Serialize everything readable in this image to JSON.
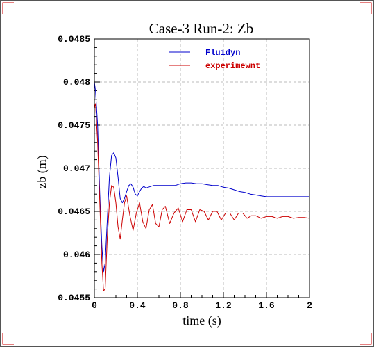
{
  "chart_data": {
    "type": "line",
    "title": "Case-3 Run-2: Zb",
    "xlabel": "time (s)",
    "ylabel": "zb (m)",
    "xlim": [
      0,
      2
    ],
    "ylim": [
      0.0455,
      0.0485
    ],
    "x_ticks": [
      0,
      0.4,
      0.8,
      1.2,
      1.6,
      2
    ],
    "x_tick_labels": [
      "0",
      "0.4",
      "0.8",
      "1.2",
      "1.6",
      "2"
    ],
    "y_ticks": [
      0.0455,
      0.046,
      0.0465,
      0.047,
      0.0475,
      0.048,
      0.0485
    ],
    "y_tick_labels": [
      "0.0455",
      "0.046",
      "0.0465",
      "0.047",
      "0.0475",
      "0.048",
      "0.0485"
    ],
    "grid": true,
    "legend_position": "top-right",
    "series": [
      {
        "name": "Fluidyn",
        "color": "#0000cc",
        "x": [
          0,
          0.01,
          0.03,
          0.05,
          0.07,
          0.085,
          0.1,
          0.12,
          0.14,
          0.16,
          0.18,
          0.2,
          0.22,
          0.24,
          0.26,
          0.28,
          0.3,
          0.32,
          0.34,
          0.36,
          0.38,
          0.4,
          0.42,
          0.44,
          0.46,
          0.48,
          0.5,
          0.55,
          0.6,
          0.65,
          0.7,
          0.75,
          0.8,
          0.85,
          0.9,
          0.95,
          1.0,
          1.05,
          1.1,
          1.15,
          1.2,
          1.25,
          1.3,
          1.35,
          1.4,
          1.45,
          1.5,
          1.55,
          1.6,
          1.7,
          1.8,
          1.9,
          2.0
        ],
        "y": [
          0.048,
          0.0479,
          0.0475,
          0.0467,
          0.0461,
          0.0458,
          0.0459,
          0.0464,
          0.0469,
          0.04715,
          0.04718,
          0.04712,
          0.0469,
          0.04665,
          0.0466,
          0.04665,
          0.04673,
          0.0468,
          0.04682,
          0.04678,
          0.0467,
          0.04668,
          0.04673,
          0.04677,
          0.04679,
          0.04677,
          0.04678,
          0.0468,
          0.0468,
          0.0468,
          0.0468,
          0.0468,
          0.04682,
          0.04683,
          0.04683,
          0.04682,
          0.04682,
          0.04681,
          0.0468,
          0.0468,
          0.04678,
          0.04677,
          0.04675,
          0.04673,
          0.04672,
          0.0467,
          0.04669,
          0.04668,
          0.04667,
          0.04667,
          0.04667,
          0.04667,
          0.04667
        ]
      },
      {
        "name": "experimewnt",
        "color": "#cc0000",
        "x": [
          0,
          0.01,
          0.03,
          0.05,
          0.07,
          0.085,
          0.1,
          0.12,
          0.14,
          0.16,
          0.18,
          0.2,
          0.22,
          0.24,
          0.26,
          0.28,
          0.3,
          0.33,
          0.36,
          0.39,
          0.42,
          0.45,
          0.48,
          0.51,
          0.54,
          0.57,
          0.6,
          0.63,
          0.66,
          0.7,
          0.74,
          0.78,
          0.82,
          0.86,
          0.9,
          0.94,
          0.98,
          1.02,
          1.06,
          1.1,
          1.14,
          1.18,
          1.22,
          1.26,
          1.3,
          1.34,
          1.38,
          1.42,
          1.46,
          1.5,
          1.55,
          1.6,
          1.65,
          1.7,
          1.75,
          1.8,
          1.85,
          1.9,
          1.95,
          2.0
        ],
        "y": [
          0.0477,
          0.04775,
          0.0473,
          0.0466,
          0.0459,
          0.04558,
          0.0456,
          0.0462,
          0.0466,
          0.0468,
          0.04678,
          0.0466,
          0.04632,
          0.04618,
          0.0464,
          0.0466,
          0.04668,
          0.04645,
          0.04628,
          0.04648,
          0.0466,
          0.04638,
          0.0463,
          0.04652,
          0.04658,
          0.04636,
          0.04632,
          0.04652,
          0.04656,
          0.04636,
          0.04648,
          0.04654,
          0.04638,
          0.04652,
          0.04652,
          0.04638,
          0.04652,
          0.0465,
          0.0464,
          0.0465,
          0.0465,
          0.0464,
          0.04648,
          0.04648,
          0.0464,
          0.04648,
          0.04648,
          0.04642,
          0.04645,
          0.04645,
          0.04642,
          0.04644,
          0.04644,
          0.04642,
          0.04644,
          0.04644,
          0.04642,
          0.04643,
          0.04643,
          0.04642
        ]
      }
    ]
  }
}
